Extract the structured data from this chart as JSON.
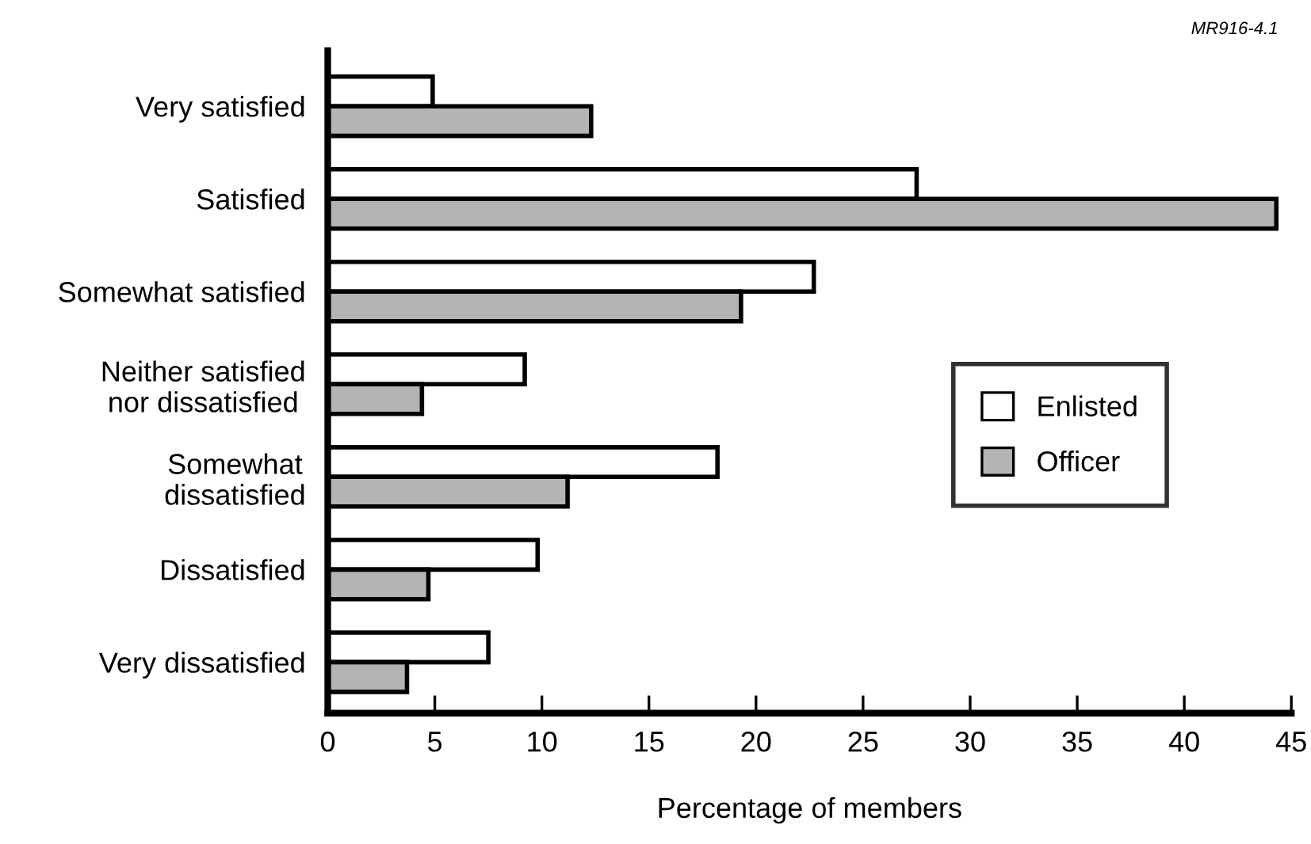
{
  "chart_data": {
    "type": "bar",
    "orientation": "horizontal",
    "xlabel": "Percentage of members",
    "categories": [
      "Very satisfied",
      "Satisfied",
      "Somewhat satisfied",
      "Neither satisfied\nnor dissatisfied",
      "Somewhat\ndissatisfied",
      "Dissatisfied",
      "Very dissatisfied"
    ],
    "series": [
      {
        "name": "Enlisted",
        "color": "#ffffff",
        "values": [
          4.9,
          27.5,
          22.7,
          9.2,
          18.2,
          9.8,
          7.5
        ]
      },
      {
        "name": "Officer",
        "color": "#b4b4b4",
        "values": [
          12.3,
          44.3,
          19.3,
          4.4,
          11.2,
          4.7,
          3.7
        ]
      }
    ],
    "xlim": [
      0,
      45
    ],
    "xticks": [
      0,
      5,
      10,
      15,
      20,
      25,
      30,
      35,
      40,
      45
    ],
    "legend": "right",
    "grid": false,
    "annotations": [
      "MR916-4.1"
    ]
  }
}
